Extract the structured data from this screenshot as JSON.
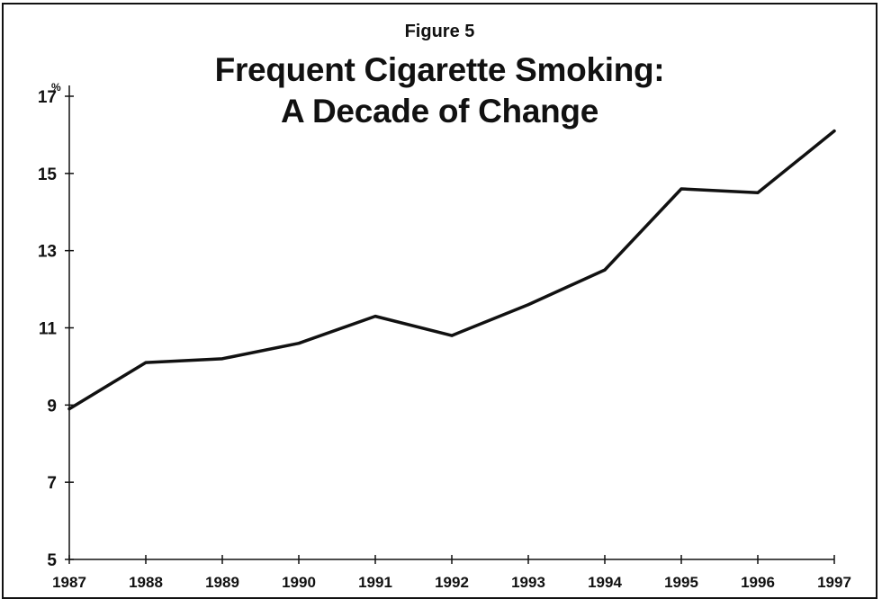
{
  "figure_label": "Figure 5",
  "title_line1": "Frequent Cigarette Smoking:",
  "title_line2": "A Decade of Change",
  "colors": {
    "line": "#111111",
    "background": "#ffffff"
  },
  "chart_data": {
    "type": "line",
    "title": "Frequent Cigarette Smoking: A Decade of Change",
    "unit_label": "%",
    "x": [
      1987,
      1988,
      1989,
      1990,
      1991,
      1992,
      1993,
      1994,
      1995,
      1996,
      1997
    ],
    "series": [
      {
        "values": [
          8.9,
          10.1,
          10.2,
          10.6,
          11.3,
          10.8,
          11.6,
          12.5,
          14.6,
          14.5,
          16.1
        ]
      }
    ],
    "xlim": [
      1987,
      1997
    ],
    "ylim": [
      5,
      17
    ],
    "yticks": [
      5,
      7,
      9,
      11,
      13,
      15,
      17
    ],
    "grid": false,
    "legend": "none"
  }
}
